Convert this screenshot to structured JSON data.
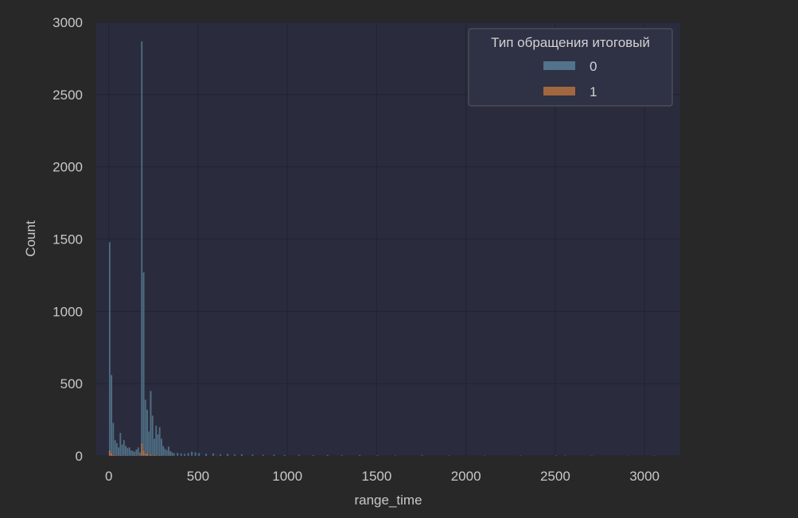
{
  "chart_data": {
    "type": "histogram",
    "xlabel": "range_time",
    "ylabel": "Count",
    "xlim": [
      -70,
      3200
    ],
    "ylim": [
      0,
      3000
    ],
    "xticks": [
      0,
      500,
      1000,
      1500,
      2000,
      2500,
      3000
    ],
    "yticks": [
      0,
      500,
      1000,
      1500,
      2000,
      2500,
      3000
    ],
    "grid": true,
    "legend": {
      "title": "Тип обращения итоговый",
      "position": "top-right",
      "entries": [
        "0",
        "1"
      ]
    },
    "series": [
      {
        "name": "0",
        "color": "#5f8aa3",
        "bins": [
          [
            0,
            1480
          ],
          [
            10,
            560
          ],
          [
            20,
            230
          ],
          [
            30,
            110
          ],
          [
            40,
            90
          ],
          [
            50,
            60
          ],
          [
            60,
            160
          ],
          [
            70,
            80
          ],
          [
            80,
            110
          ],
          [
            90,
            70
          ],
          [
            100,
            55
          ],
          [
            110,
            60
          ],
          [
            120,
            40
          ],
          [
            130,
            35
          ],
          [
            140,
            30
          ],
          [
            150,
            45
          ],
          [
            160,
            60
          ],
          [
            170,
            25
          ],
          [
            180,
            2870
          ],
          [
            190,
            1270
          ],
          [
            200,
            390
          ],
          [
            210,
            320
          ],
          [
            220,
            170
          ],
          [
            230,
            450
          ],
          [
            240,
            280
          ],
          [
            250,
            120
          ],
          [
            260,
            210
          ],
          [
            270,
            150
          ],
          [
            280,
            200
          ],
          [
            290,
            120
          ],
          [
            300,
            70
          ],
          [
            310,
            50
          ],
          [
            320,
            40
          ],
          [
            330,
            65
          ],
          [
            340,
            35
          ],
          [
            350,
            25
          ],
          [
            360,
            20
          ],
          [
            380,
            22
          ],
          [
            400,
            18
          ],
          [
            420,
            15
          ],
          [
            440,
            20
          ],
          [
            460,
            30
          ],
          [
            480,
            25
          ],
          [
            500,
            20
          ],
          [
            540,
            15
          ],
          [
            580,
            18
          ],
          [
            620,
            12
          ],
          [
            660,
            14
          ],
          [
            700,
            10
          ],
          [
            740,
            12
          ],
          [
            800,
            10
          ],
          [
            860,
            8
          ],
          [
            920,
            9
          ],
          [
            980,
            7
          ],
          [
            1060,
            8
          ],
          [
            1140,
            6
          ],
          [
            1220,
            7
          ],
          [
            1300,
            5
          ],
          [
            1400,
            6
          ],
          [
            1500,
            5
          ],
          [
            1600,
            4
          ],
          [
            1750,
            5
          ],
          [
            1900,
            4
          ],
          [
            2100,
            3
          ],
          [
            2300,
            3
          ],
          [
            2500,
            4
          ],
          [
            2550,
            3
          ],
          [
            2700,
            3
          ],
          [
            2900,
            2
          ],
          [
            3050,
            3
          ]
        ]
      },
      {
        "name": "1",
        "color": "#c87a3e",
        "bins": [
          [
            0,
            40
          ],
          [
            10,
            20
          ],
          [
            20,
            10
          ],
          [
            30,
            8
          ],
          [
            60,
            10
          ],
          [
            100,
            6
          ],
          [
            140,
            8
          ],
          [
            180,
            90
          ],
          [
            190,
            40
          ],
          [
            200,
            20
          ],
          [
            210,
            18
          ],
          [
            230,
            15
          ],
          [
            250,
            10
          ],
          [
            280,
            8
          ],
          [
            320,
            5
          ],
          [
            400,
            3
          ],
          [
            600,
            2
          ]
        ]
      }
    ],
    "bin_width": 10,
    "legend_swatch_opacity": 0.75
  }
}
